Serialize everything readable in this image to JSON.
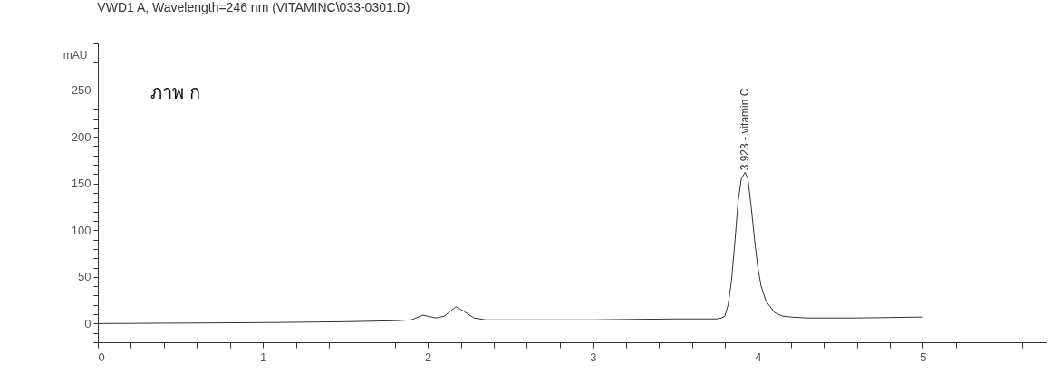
{
  "chart_data": {
    "type": "line",
    "title": "VWD1 A, Wavelength=246 nm (VITAMINC\\033-0301.D)",
    "ylabel": "mAU",
    "annotations": [
      "ภาพ ก",
      {
        "text": "3.923 - vitamin C",
        "x": 3.923,
        "y": 162
      }
    ],
    "x": [
      0,
      0.5,
      1,
      1.5,
      1.8,
      1.9,
      1.97,
      2.05,
      2.1,
      2.17,
      2.22,
      2.28,
      2.35,
      2.5,
      3,
      3.5,
      3.75,
      3.78,
      3.8,
      3.82,
      3.84,
      3.86,
      3.88,
      3.9,
      3.923,
      3.94,
      3.96,
      3.98,
      4,
      4.02,
      4.05,
      4.1,
      4.15,
      4.2,
      4.3,
      4.6,
      5
    ],
    "series": [
      {
        "color": "#333333",
        "values": [
          0,
          0.5,
          1,
          2,
          3,
          4,
          9,
          6,
          8,
          18,
          13,
          6,
          4,
          4,
          4,
          5,
          5,
          6,
          8,
          20,
          45,
          85,
          130,
          155,
          162,
          155,
          125,
          90,
          60,
          40,
          24,
          12,
          8,
          7,
          6,
          6,
          7
        ]
      }
    ],
    "xlim": [
      0,
      5.75
    ],
    "xticks": [
      0,
      {
        "value": 0.2,
        "label": null
      },
      {
        "value": 0.4,
        "label": null
      },
      {
        "value": 0.6,
        "label": null
      },
      {
        "value": 0.8,
        "label": null
      },
      1,
      {
        "value": 1.2,
        "label": null
      },
      {
        "value": 1.4,
        "label": null
      },
      {
        "value": 1.6,
        "label": null
      },
      {
        "value": 1.8,
        "label": null
      },
      2,
      {
        "value": 2.2,
        "label": null
      },
      {
        "value": 2.4,
        "label": null
      },
      {
        "value": 2.6,
        "label": null
      },
      {
        "value": 2.8,
        "label": null
      },
      3,
      {
        "value": 3.2,
        "label": null
      },
      {
        "value": 3.4,
        "label": null
      },
      {
        "value": 3.6,
        "label": null
      },
      {
        "value": 3.8,
        "label": null
      },
      4,
      {
        "value": 4.2,
        "label": null
      },
      {
        "value": 4.4,
        "label": null
      },
      {
        "value": 4.6,
        "label": null
      },
      {
        "value": 4.8,
        "label": null
      },
      5,
      {
        "value": 5.2,
        "label": null
      },
      {
        "value": 5.4,
        "label": null
      },
      {
        "value": 5.6,
        "label": null
      }
    ],
    "ylim": [
      -20,
      300
    ],
    "yticks": [
      {
        "value": -20,
        "label": null
      },
      {
        "value": -10,
        "label": null
      },
      0,
      {
        "value": 10,
        "label": null
      },
      {
        "value": 20,
        "label": null
      },
      {
        "value": 30,
        "label": null
      },
      {
        "value": 40,
        "label": null
      },
      50,
      {
        "value": 60,
        "label": null
      },
      {
        "value": 70,
        "label": null
      },
      {
        "value": 80,
        "label": null
      },
      {
        "value": 90,
        "label": null
      },
      100,
      {
        "value": 110,
        "label": null
      },
      {
        "value": 120,
        "label": null
      },
      {
        "value": 130,
        "label": null
      },
      {
        "value": 140,
        "label": null
      },
      150,
      {
        "value": 160,
        "label": null
      },
      {
        "value": 170,
        "label": null
      },
      {
        "value": 180,
        "label": null
      },
      {
        "value": 190,
        "label": null
      },
      200,
      {
        "value": 210,
        "label": null
      },
      {
        "value": 220,
        "label": null
      },
      {
        "value": 230,
        "label": null
      },
      {
        "value": 240,
        "label": null
      },
      250,
      {
        "value": 260,
        "label": null
      },
      {
        "value": 270,
        "label": null
      },
      {
        "value": 280,
        "label": null
      },
      {
        "value": 290,
        "label": null
      },
      {
        "value": 300,
        "label": null
      }
    ],
    "grid": false,
    "marker": "none",
    "line_style": "solid"
  }
}
